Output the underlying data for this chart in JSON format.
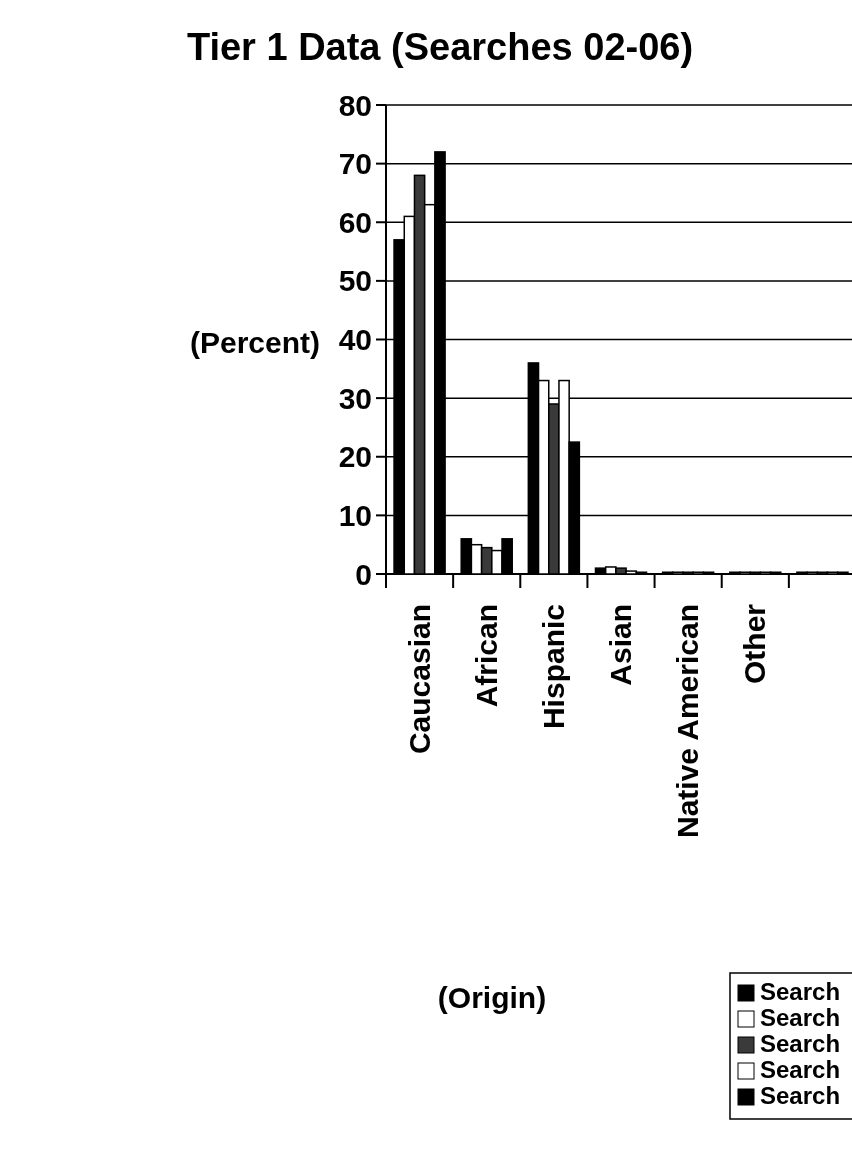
{
  "chart_data": {
    "type": "bar",
    "title": "Tier 1 Data (Searches 02-06)",
    "xlabel": "(Origin)",
    "ylabel": "(Percent)",
    "categories": [
      "Caucasian",
      "African",
      "Hispanic",
      "Asian",
      "Native American",
      "Other",
      null
    ],
    "series": [
      {
        "name": "Search",
        "color": "#000000",
        "values": [
          57,
          6,
          36,
          1,
          0.3,
          0.3,
          0.3
        ]
      },
      {
        "name": "Search",
        "color": "#ffffff",
        "values": [
          61,
          5,
          33,
          1.2,
          0.3,
          0.3,
          0.3
        ]
      },
      {
        "name": "Search",
        "color": "#3a3a3a",
        "values": [
          68,
          4.5,
          29,
          1,
          0.3,
          0.3,
          0.3
        ]
      },
      {
        "name": "Search",
        "color": "#ffffff",
        "values": [
          63,
          4,
          33,
          0.5,
          0.3,
          0.3,
          0.3
        ]
      },
      {
        "name": "Search",
        "color": "#000000",
        "values": [
          72,
          6,
          22.5,
          0.3,
          0.3,
          0.3,
          0.3
        ]
      }
    ],
    "ylim": [
      0,
      80
    ],
    "yticks": [
      0,
      10,
      20,
      30,
      40,
      50,
      60,
      70,
      80
    ],
    "grid": "y",
    "legend": "bottom right"
  }
}
